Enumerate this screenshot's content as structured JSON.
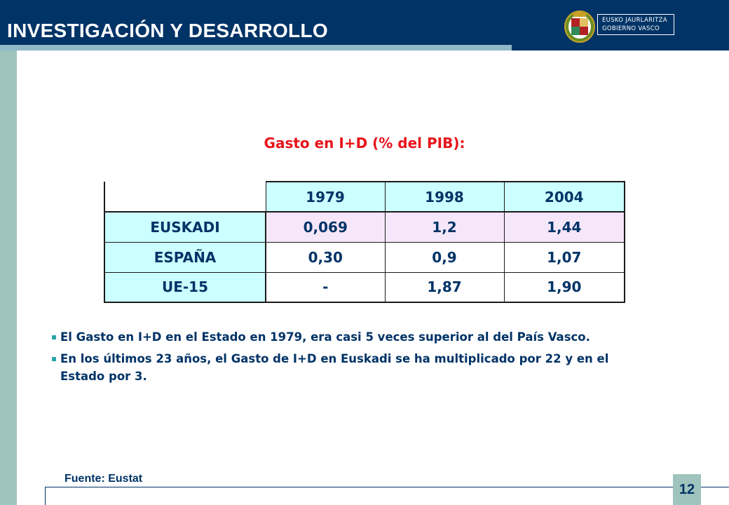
{
  "header": {
    "title": "INVESTIGACIÓN  Y DESARROLLO",
    "logo": {
      "line1": "EUSKO JAURLARITZA",
      "line2": "GOBIERNO VASCO",
      "icon": "basque-government-shield-icon"
    }
  },
  "subtitle": "Gasto en I+D (% del PIB):",
  "table": {
    "columns": [
      "1979",
      "1998",
      "2004"
    ],
    "rows": [
      {
        "label": "EUSKADI",
        "values": [
          "0,069",
          "1,2",
          "1,44"
        ]
      },
      {
        "label": "ESPAÑA",
        "values": [
          "0,30",
          "0,9",
          "1,07"
        ]
      },
      {
        "label": "UE-15",
        "values": [
          "-",
          "1,87",
          "1,90"
        ]
      }
    ]
  },
  "bullets": [
    "El Gasto en I+D en el Estado en 1979, era casi 5 veces superior al  del País Vasco.",
    "En los últimos 23 años, el Gasto de I+D en Euskadi se ha  multiplicado por 22 y en  el Estado por 3."
  ],
  "source": "Fuente: Eustat",
  "page_number": "12",
  "colors": {
    "header_bg": "#003366",
    "accent_bar": "#8fb8c8",
    "side_bar": "#9fc3bd",
    "subtitle": "#e8141b",
    "text": "#003366",
    "table_header_bg": "#ccffff",
    "euskadi_row_bg": "#f5e6f9"
  }
}
